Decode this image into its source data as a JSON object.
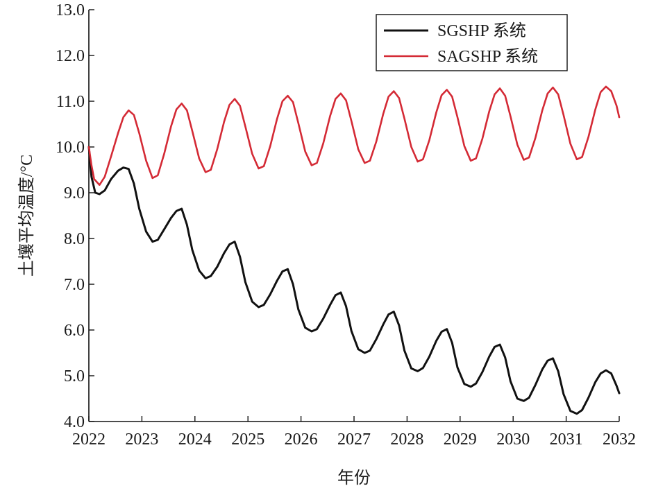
{
  "chart_data": {
    "type": "line",
    "title": "",
    "xlabel": "年份",
    "ylabel": "土壤平均温度/°C",
    "xlim": [
      2022,
      2032
    ],
    "ylim": [
      4.0,
      13.0
    ],
    "x_ticks": [
      "2022",
      "2023",
      "2024",
      "2025",
      "2026",
      "2027",
      "2028",
      "2029",
      "2030",
      "2031",
      "2032"
    ],
    "y_ticks": [
      "4.0",
      "5.0",
      "6.0",
      "7.0",
      "8.0",
      "9.0",
      "10.0",
      "11.0",
      "12.0",
      "13.0"
    ],
    "grid": false,
    "legend_position": "top-right",
    "series": [
      {
        "name": "SGSHP 系统",
        "color": "#111111",
        "points": [
          [
            2022.0,
            10.0
          ],
          [
            2022.05,
            9.35
          ],
          [
            2022.12,
            9.0
          ],
          [
            2022.2,
            8.97
          ],
          [
            2022.3,
            9.05
          ],
          [
            2022.42,
            9.3
          ],
          [
            2022.55,
            9.48
          ],
          [
            2022.65,
            9.55
          ],
          [
            2022.75,
            9.52
          ],
          [
            2022.85,
            9.2
          ],
          [
            2022.95,
            8.65
          ],
          [
            2023.08,
            8.15
          ],
          [
            2023.2,
            7.93
          ],
          [
            2023.3,
            7.97
          ],
          [
            2023.42,
            8.2
          ],
          [
            2023.55,
            8.45
          ],
          [
            2023.65,
            8.6
          ],
          [
            2023.75,
            8.65
          ],
          [
            2023.85,
            8.3
          ],
          [
            2023.95,
            7.75
          ],
          [
            2024.08,
            7.3
          ],
          [
            2024.2,
            7.13
          ],
          [
            2024.3,
            7.18
          ],
          [
            2024.42,
            7.38
          ],
          [
            2024.55,
            7.68
          ],
          [
            2024.65,
            7.87
          ],
          [
            2024.75,
            7.93
          ],
          [
            2024.85,
            7.6
          ],
          [
            2024.95,
            7.05
          ],
          [
            2025.08,
            6.62
          ],
          [
            2025.2,
            6.5
          ],
          [
            2025.3,
            6.55
          ],
          [
            2025.42,
            6.78
          ],
          [
            2025.55,
            7.08
          ],
          [
            2025.65,
            7.28
          ],
          [
            2025.75,
            7.33
          ],
          [
            2025.85,
            7.0
          ],
          [
            2025.95,
            6.45
          ],
          [
            2026.08,
            6.05
          ],
          [
            2026.2,
            5.97
          ],
          [
            2026.3,
            6.02
          ],
          [
            2026.42,
            6.25
          ],
          [
            2026.55,
            6.55
          ],
          [
            2026.65,
            6.76
          ],
          [
            2026.75,
            6.82
          ],
          [
            2026.85,
            6.52
          ],
          [
            2026.95,
            5.98
          ],
          [
            2027.08,
            5.58
          ],
          [
            2027.2,
            5.5
          ],
          [
            2027.3,
            5.55
          ],
          [
            2027.42,
            5.8
          ],
          [
            2027.55,
            6.12
          ],
          [
            2027.65,
            6.34
          ],
          [
            2027.75,
            6.4
          ],
          [
            2027.85,
            6.1
          ],
          [
            2027.95,
            5.55
          ],
          [
            2028.08,
            5.16
          ],
          [
            2028.2,
            5.1
          ],
          [
            2028.3,
            5.17
          ],
          [
            2028.42,
            5.42
          ],
          [
            2028.55,
            5.76
          ],
          [
            2028.65,
            5.96
          ],
          [
            2028.75,
            6.02
          ],
          [
            2028.85,
            5.72
          ],
          [
            2028.95,
            5.18
          ],
          [
            2029.08,
            4.82
          ],
          [
            2029.2,
            4.76
          ],
          [
            2029.3,
            4.83
          ],
          [
            2029.42,
            5.08
          ],
          [
            2029.55,
            5.42
          ],
          [
            2029.65,
            5.63
          ],
          [
            2029.75,
            5.68
          ],
          [
            2029.85,
            5.4
          ],
          [
            2029.95,
            4.88
          ],
          [
            2030.08,
            4.5
          ],
          [
            2030.2,
            4.45
          ],
          [
            2030.3,
            4.52
          ],
          [
            2030.42,
            4.8
          ],
          [
            2030.55,
            5.14
          ],
          [
            2030.65,
            5.33
          ],
          [
            2030.75,
            5.38
          ],
          [
            2030.85,
            5.1
          ],
          [
            2030.95,
            4.6
          ],
          [
            2031.08,
            4.23
          ],
          [
            2031.2,
            4.17
          ],
          [
            2031.3,
            4.25
          ],
          [
            2031.42,
            4.52
          ],
          [
            2031.55,
            4.86
          ],
          [
            2031.65,
            5.05
          ],
          [
            2031.75,
            5.12
          ],
          [
            2031.85,
            5.05
          ],
          [
            2031.95,
            4.78
          ],
          [
            2032.0,
            4.62
          ]
        ]
      },
      {
        "name": "SAGSHP 系统",
        "color": "#d42a35",
        "points": [
          [
            2022.0,
            10.0
          ],
          [
            2022.05,
            9.6
          ],
          [
            2022.1,
            9.3
          ],
          [
            2022.2,
            9.17
          ],
          [
            2022.3,
            9.35
          ],
          [
            2022.42,
            9.8
          ],
          [
            2022.55,
            10.3
          ],
          [
            2022.65,
            10.65
          ],
          [
            2022.75,
            10.8
          ],
          [
            2022.85,
            10.7
          ],
          [
            2022.95,
            10.3
          ],
          [
            2023.08,
            9.7
          ],
          [
            2023.2,
            9.32
          ],
          [
            2023.3,
            9.38
          ],
          [
            2023.42,
            9.85
          ],
          [
            2023.55,
            10.45
          ],
          [
            2023.65,
            10.82
          ],
          [
            2023.75,
            10.95
          ],
          [
            2023.85,
            10.8
          ],
          [
            2023.95,
            10.35
          ],
          [
            2024.08,
            9.75
          ],
          [
            2024.2,
            9.45
          ],
          [
            2024.3,
            9.5
          ],
          [
            2024.42,
            9.95
          ],
          [
            2024.55,
            10.55
          ],
          [
            2024.65,
            10.92
          ],
          [
            2024.75,
            11.05
          ],
          [
            2024.85,
            10.9
          ],
          [
            2024.95,
            10.45
          ],
          [
            2025.08,
            9.85
          ],
          [
            2025.2,
            9.53
          ],
          [
            2025.3,
            9.58
          ],
          [
            2025.42,
            10.02
          ],
          [
            2025.55,
            10.62
          ],
          [
            2025.65,
            11.0
          ],
          [
            2025.75,
            11.12
          ],
          [
            2025.85,
            10.98
          ],
          [
            2025.95,
            10.52
          ],
          [
            2026.08,
            9.9
          ],
          [
            2026.2,
            9.6
          ],
          [
            2026.3,
            9.65
          ],
          [
            2026.42,
            10.08
          ],
          [
            2026.55,
            10.68
          ],
          [
            2026.65,
            11.05
          ],
          [
            2026.75,
            11.17
          ],
          [
            2026.85,
            11.02
          ],
          [
            2026.95,
            10.57
          ],
          [
            2027.08,
            9.95
          ],
          [
            2027.2,
            9.65
          ],
          [
            2027.3,
            9.7
          ],
          [
            2027.42,
            10.12
          ],
          [
            2027.55,
            10.72
          ],
          [
            2027.65,
            11.1
          ],
          [
            2027.75,
            11.22
          ],
          [
            2027.85,
            11.07
          ],
          [
            2027.95,
            10.62
          ],
          [
            2028.08,
            10.0
          ],
          [
            2028.2,
            9.68
          ],
          [
            2028.3,
            9.73
          ],
          [
            2028.42,
            10.15
          ],
          [
            2028.55,
            10.75
          ],
          [
            2028.65,
            11.13
          ],
          [
            2028.75,
            11.25
          ],
          [
            2028.85,
            11.1
          ],
          [
            2028.95,
            10.65
          ],
          [
            2029.08,
            10.02
          ],
          [
            2029.2,
            9.7
          ],
          [
            2029.3,
            9.75
          ],
          [
            2029.42,
            10.18
          ],
          [
            2029.55,
            10.78
          ],
          [
            2029.65,
            11.15
          ],
          [
            2029.75,
            11.28
          ],
          [
            2029.85,
            11.12
          ],
          [
            2029.95,
            10.67
          ],
          [
            2030.08,
            10.05
          ],
          [
            2030.2,
            9.72
          ],
          [
            2030.3,
            9.77
          ],
          [
            2030.42,
            10.2
          ],
          [
            2030.55,
            10.8
          ],
          [
            2030.65,
            11.17
          ],
          [
            2030.75,
            11.3
          ],
          [
            2030.85,
            11.15
          ],
          [
            2030.95,
            10.7
          ],
          [
            2031.08,
            10.07
          ],
          [
            2031.2,
            9.73
          ],
          [
            2031.3,
            9.78
          ],
          [
            2031.42,
            10.22
          ],
          [
            2031.55,
            10.82
          ],
          [
            2031.65,
            11.2
          ],
          [
            2031.75,
            11.32
          ],
          [
            2031.85,
            11.22
          ],
          [
            2031.95,
            10.9
          ],
          [
            2032.0,
            10.65
          ]
        ]
      }
    ]
  }
}
